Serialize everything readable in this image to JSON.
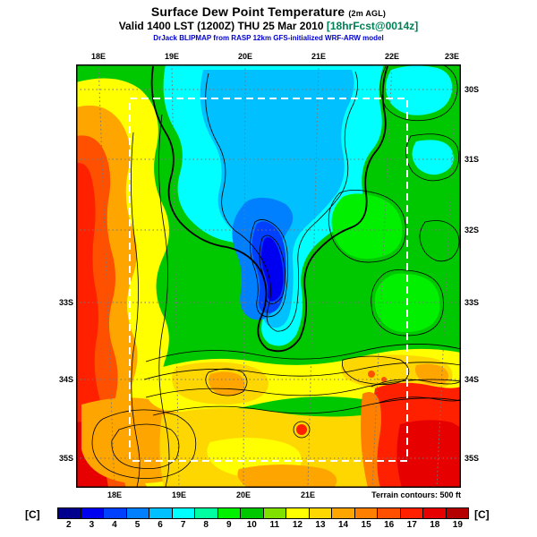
{
  "header": {
    "title": "Surface Dew Point Temperature",
    "title_suffix": "(2m AGL)",
    "valid_text": "Valid 1400 LST (1200Z) THU 25 Mar 2010",
    "forecast_text": "[18hrFcst@0014z]",
    "model_text": "DrJack BLIPMAP from RASP 12km GFS-initialized WRF-ARW model"
  },
  "map": {
    "top_ticks": [
      "18E",
      "19E",
      "20E",
      "21E",
      "22E",
      "23E"
    ],
    "bottom_ticks": [
      "18E",
      "19E",
      "20E",
      "21E"
    ],
    "left_ticks": [
      "33S",
      "34S",
      "35S"
    ],
    "right_ticks": [
      "30S",
      "31S",
      "32S",
      "33S",
      "34S",
      "35S"
    ],
    "terrain_note": "Terrain contours: 500 ft"
  },
  "colorbar": {
    "unit_left": "[C]",
    "unit_right": "[C]",
    "values": [
      "2",
      "3",
      "4",
      "5",
      "6",
      "7",
      "8",
      "9",
      "10",
      "11",
      "12",
      "13",
      "14",
      "15",
      "16",
      "17",
      "18",
      "19"
    ],
    "colors": [
      "#00008f",
      "#0000f0",
      "#0040ff",
      "#0080ff",
      "#00c0ff",
      "#00ffff",
      "#00ffa0",
      "#00f000",
      "#00c800",
      "#80e000",
      "#ffff00",
      "#ffd700",
      "#ffa500",
      "#ff8000",
      "#ff5000",
      "#ff2000",
      "#e60000",
      "#b40000"
    ]
  },
  "accent_colors": {
    "forecast_text": "#008055",
    "model_text": "#0000cc"
  }
}
